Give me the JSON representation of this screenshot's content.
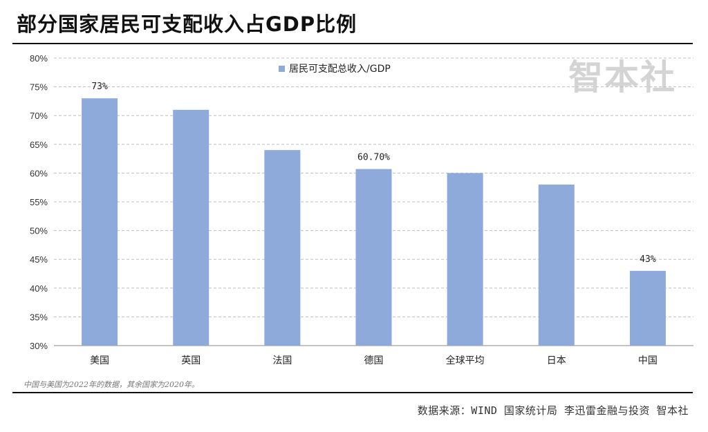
{
  "title": "部分国家居民可支配收入占GDP比例",
  "watermark": "智本社",
  "note": "中国与美国为2022年的数据，其余国家为2020年。",
  "source": "数据来源：WIND 国家统计局 李迅雷金融与投资 智本社",
  "colors": {
    "bar": "#8eaadb",
    "grid": "#bfbfbf",
    "axis": "#888888"
  },
  "chart_data": {
    "type": "bar",
    "title": "",
    "xlabel": "",
    "ylabel": "",
    "categories": [
      "美国",
      "英国",
      "法国",
      "德国",
      "全球平均",
      "日本",
      "中国"
    ],
    "series": [
      {
        "name": "居民可支配总收入/GDP",
        "values": [
          73,
          71,
          64,
          60.7,
          60,
          58,
          43
        ]
      }
    ],
    "data_labels": [
      "73%",
      "",
      "",
      "60.70%",
      "",
      "",
      "43%"
    ],
    "yticks": [
      "30%",
      "35%",
      "40%",
      "45%",
      "50%",
      "55%",
      "60%",
      "65%",
      "70%",
      "75%",
      "80%"
    ],
    "ylim": [
      30,
      80
    ],
    "grid": true,
    "legend_position": "top-center"
  }
}
